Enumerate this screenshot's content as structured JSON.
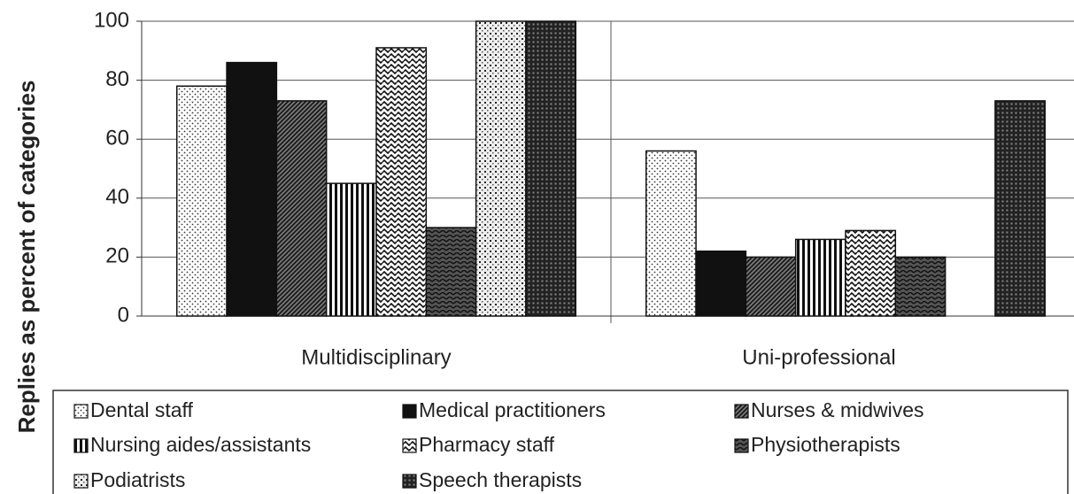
{
  "chart_data": {
    "type": "bar",
    "y_label": "Replies as percent of categories",
    "categories": [
      "Multidisciplinary",
      "Uni-professional"
    ],
    "series": [
      {
        "name": "Dental staff",
        "pattern": "dots",
        "values": [
          78,
          56
        ]
      },
      {
        "name": "Medical practitioners",
        "pattern": "solid",
        "values": [
          86,
          22
        ]
      },
      {
        "name": "Nurses & midwives",
        "pattern": "diag",
        "values": [
          73,
          20
        ]
      },
      {
        "name": "Nursing aides/assistants",
        "pattern": "vert",
        "values": [
          45,
          26
        ]
      },
      {
        "name": "Pharmacy staff",
        "pattern": "wave",
        "values": [
          91,
          29
        ]
      },
      {
        "name": "Physiotherapists",
        "pattern": "zigzag",
        "values": [
          30,
          20
        ]
      },
      {
        "name": "Podiatrists",
        "pattern": "dots2",
        "values": [
          100,
          null
        ]
      },
      {
        "name": "Speech therapists",
        "pattern": "grid",
        "values": [
          100,
          73
        ]
      }
    ],
    "ylim": [
      0,
      100
    ],
    "yticks": [
      0,
      20,
      40,
      60,
      80,
      100
    ],
    "grid": true
  }
}
